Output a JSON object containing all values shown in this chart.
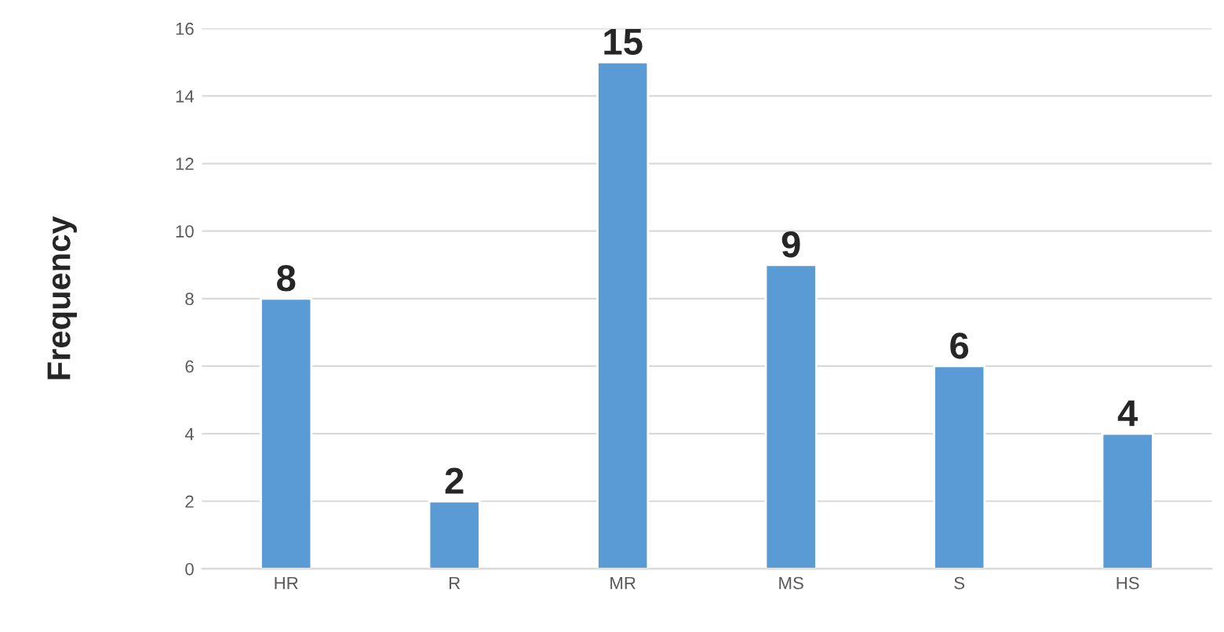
{
  "chart_data": {
    "type": "bar",
    "ylabel": "Frequency",
    "categories": [
      "HR",
      "R",
      "MR",
      "MS",
      "S",
      "HS"
    ],
    "values": [
      8,
      2,
      15,
      9,
      6,
      4
    ],
    "color": "#5b9bd5",
    "ylim": [
      0,
      16
    ],
    "yticks": [
      0,
      2,
      4,
      6,
      8,
      10,
      12,
      14,
      16
    ],
    "grid": "y",
    "data_labels": true
  }
}
